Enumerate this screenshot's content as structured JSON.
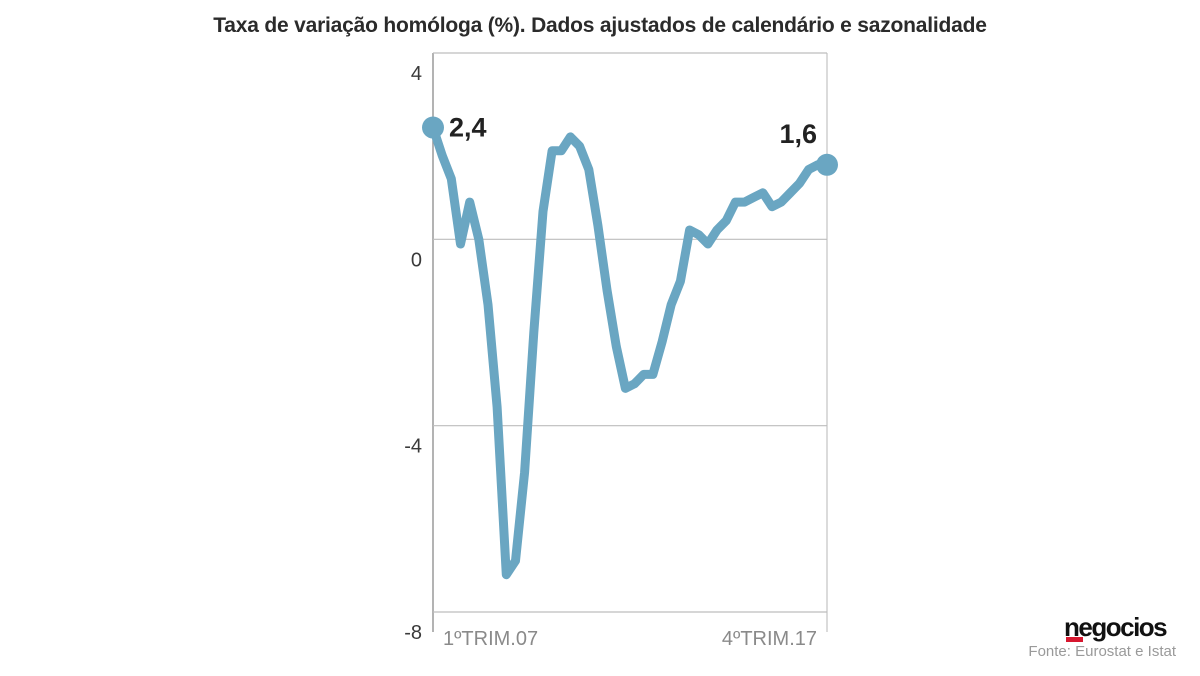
{
  "chart_data": {
    "type": "line",
    "title": "Taxa de variação homóloga (%). Dados ajustados de calendário e sazonalidade",
    "ylim": [
      -8,
      4
    ],
    "y_ticks": [
      "4",
      "0",
      "-4",
      "-8"
    ],
    "y_tick_values": [
      4,
      0,
      -4,
      -8
    ],
    "x_labels": [
      "1ºTRIM.07",
      "4ºTRIM.17"
    ],
    "grid": true,
    "series": [
      {
        "color": "#6aa6c2",
        "values": [
          2.4,
          1.8,
          1.3,
          -0.1,
          0.8,
          0.0,
          -1.4,
          -3.6,
          -7.2,
          -6.9,
          -5.0,
          -2.0,
          0.6,
          1.9,
          1.9,
          2.2,
          2.0,
          1.5,
          0.3,
          -1.1,
          -2.3,
          -3.2,
          -3.1,
          -2.9,
          -2.9,
          -2.2,
          -1.4,
          -0.9,
          0.2,
          0.1,
          -0.1,
          0.2,
          0.4,
          0.8,
          0.8,
          0.9,
          1.0,
          0.7,
          0.8,
          1.0,
          1.2,
          1.5,
          1.6,
          1.6
        ]
      }
    ],
    "annotations": [
      {
        "text": "2,4",
        "index": 0
      },
      {
        "text": "1,6",
        "index": 43
      }
    ]
  },
  "source": "Fonte: Eurostat e Istat",
  "brand": "negocios"
}
